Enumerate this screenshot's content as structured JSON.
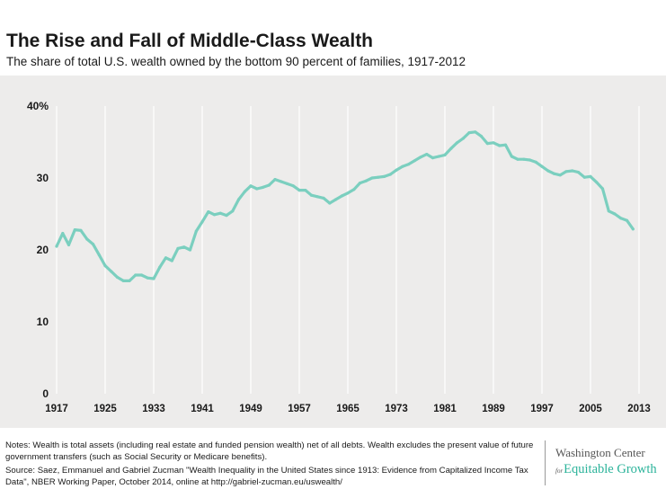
{
  "header": {
    "title": "The Rise and Fall of Middle-Class Wealth",
    "subtitle": "The share of total U.S. wealth owned by the bottom 90 percent of families, 1917-2012"
  },
  "footer": {
    "notes": "Notes: Wealth is total assets (including real estate and funded pension wealth) net of all debts. Wealth excludes the present value of future government transfers (such as Social Security or Medicare benefits).",
    "source": "Source: Saez, Emmanuel and Gabriel Zucman \"Wealth Inequality in the United States since 1913: Evidence from Capitalized Income Tax Data\", NBER Working Paper, October 2014, online at http://gabriel-zucman.eu/uswealth/",
    "logo": {
      "line1": "Washington Center",
      "for": "for",
      "line2": "Equitable Growth"
    }
  },
  "colors": {
    "line": "#7bcfbf",
    "plot_background": "#edeceb",
    "gridline": "#ffffff",
    "logo_accent": "#2bb39a"
  },
  "chart_data": {
    "type": "line",
    "title": "The Rise and Fall of Middle-Class Wealth",
    "subtitle": "The share of total U.S. wealth owned by the bottom 90 percent of families, 1917-2012",
    "xlabel": "",
    "ylabel": "",
    "xlim": [
      1917,
      2013
    ],
    "ylim": [
      0,
      40
    ],
    "x_ticks": [
      1917,
      1925,
      1933,
      1941,
      1949,
      1957,
      1965,
      1973,
      1981,
      1989,
      1997,
      2005,
      2013
    ],
    "y_ticks": [
      0,
      10,
      20,
      30,
      40
    ],
    "y_tick_labels": [
      "0",
      "10",
      "20",
      "30",
      "40%"
    ],
    "grid": "vertical lines at x ticks",
    "legend": "none",
    "series": [
      {
        "x": [
          1917,
          1918,
          1919,
          1920,
          1921,
          1922,
          1923,
          1924,
          1925,
          1926,
          1927,
          1928,
          1929,
          1930,
          1931,
          1932,
          1933,
          1934,
          1935,
          1936,
          1937,
          1938,
          1939,
          1940,
          1941,
          1942,
          1943,
          1944,
          1945,
          1946,
          1947,
          1948,
          1949,
          1950,
          1951,
          1952,
          1953,
          1954,
          1955,
          1956,
          1957,
          1958,
          1959,
          1960,
          1961,
          1962,
          1963,
          1964,
          1965,
          1966,
          1967,
          1968,
          1969,
          1970,
          1971,
          1972,
          1973,
          1974,
          1975,
          1976,
          1977,
          1978,
          1979,
          1980,
          1981,
          1982,
          1983,
          1984,
          1985,
          1986,
          1987,
          1988,
          1989,
          1990,
          1991,
          1992,
          1993,
          1994,
          1995,
          1996,
          1997,
          1998,
          1999,
          2000,
          2001,
          2002,
          2003,
          2004,
          2005,
          2006,
          2007,
          2008,
          2009,
          2010,
          2011,
          2012
        ],
        "values": [
          20.5,
          22.3,
          20.7,
          22.8,
          22.7,
          21.5,
          20.8,
          19.3,
          17.8,
          17.0,
          16.2,
          15.7,
          15.7,
          16.5,
          16.5,
          16.1,
          16.0,
          17.6,
          18.9,
          18.5,
          20.2,
          20.4,
          20.0,
          22.6,
          23.9,
          25.3,
          24.9,
          25.1,
          24.8,
          25.4,
          27.0,
          28.1,
          28.9,
          28.5,
          28.7,
          29.0,
          29.8,
          29.5,
          29.2,
          28.9,
          28.3,
          28.3,
          27.6,
          27.4,
          27.2,
          26.5,
          27.0,
          27.5,
          27.9,
          28.4,
          29.3,
          29.6,
          30.0,
          30.1,
          30.2,
          30.5,
          31.1,
          31.6,
          31.9,
          32.4,
          32.9,
          33.3,
          32.8,
          33.0,
          33.2,
          34.1,
          34.9,
          35.5,
          36.3,
          36.4,
          35.8,
          34.8,
          34.9,
          34.5,
          34.6,
          33.0,
          32.6,
          32.6,
          32.5,
          32.2,
          31.6,
          31.0,
          30.6,
          30.4,
          30.9,
          31.0,
          30.8,
          30.1,
          30.2,
          29.4,
          28.5,
          25.4,
          25.0,
          24.4,
          24.1,
          22.9
        ]
      }
    ]
  }
}
